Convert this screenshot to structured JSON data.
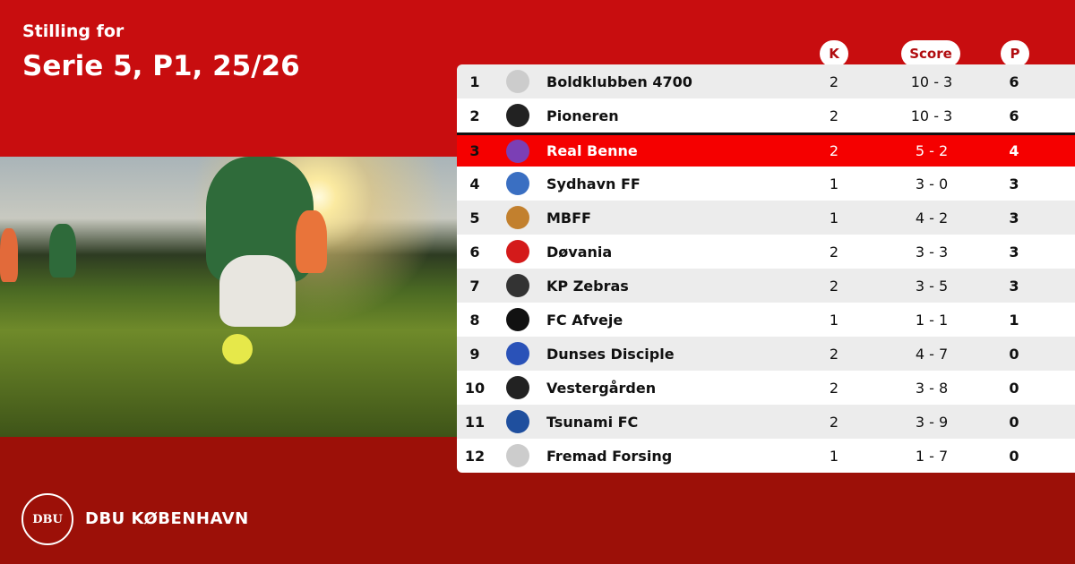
{
  "header": {
    "subtitle": "Stilling for",
    "title": "Serie 5, P1, 25/26"
  },
  "columns": {
    "k": "K",
    "score": "Score",
    "p": "P"
  },
  "highlight_color": "#f50000",
  "rows": [
    {
      "pos": "1",
      "team": "Boldklubben 4700",
      "k": "2",
      "score": "10 - 3",
      "p": "6",
      "logo_color": "#cccccc"
    },
    {
      "pos": "2",
      "team": "Pioneren",
      "k": "2",
      "score": "10 - 3",
      "p": "6",
      "logo_color": "#222222"
    },
    {
      "pos": "3",
      "team": "Real Benne",
      "k": "2",
      "score": "5 - 2",
      "p": "4",
      "logo_color": "#7b3fb5",
      "highlight": true
    },
    {
      "pos": "4",
      "team": "Sydhavn FF",
      "k": "1",
      "score": "3 - 0",
      "p": "3",
      "logo_color": "#3a6fc2"
    },
    {
      "pos": "5",
      "team": "MBFF",
      "k": "1",
      "score": "4 - 2",
      "p": "3",
      "logo_color": "#c2802e"
    },
    {
      "pos": "6",
      "team": "Døvania",
      "k": "2",
      "score": "3 - 3",
      "p": "3",
      "logo_color": "#d41a1a"
    },
    {
      "pos": "7",
      "team": "KP Zebras",
      "k": "2",
      "score": "3 - 5",
      "p": "3",
      "logo_color": "#333333"
    },
    {
      "pos": "8",
      "team": "FC Afveje",
      "k": "1",
      "score": "1 - 1",
      "p": "1",
      "logo_color": "#111111"
    },
    {
      "pos": "9",
      "team": "Dunses Disciple",
      "k": "2",
      "score": "4 - 7",
      "p": "0",
      "logo_color": "#2a52b8"
    },
    {
      "pos": "10",
      "team": "Vestergården",
      "k": "2",
      "score": "3 - 8",
      "p": "0",
      "logo_color": "#222222"
    },
    {
      "pos": "11",
      "team": "Tsunami FC",
      "k": "2",
      "score": "3 - 9",
      "p": "0",
      "logo_color": "#1f4f9e"
    },
    {
      "pos": "12",
      "team": "Fremad Forsing",
      "k": "1",
      "score": "1 - 7",
      "p": "0",
      "logo_color": "#cccccc"
    }
  ],
  "footer": {
    "brand": "DBU KØBENHAVN",
    "logo_text": "DBU"
  }
}
